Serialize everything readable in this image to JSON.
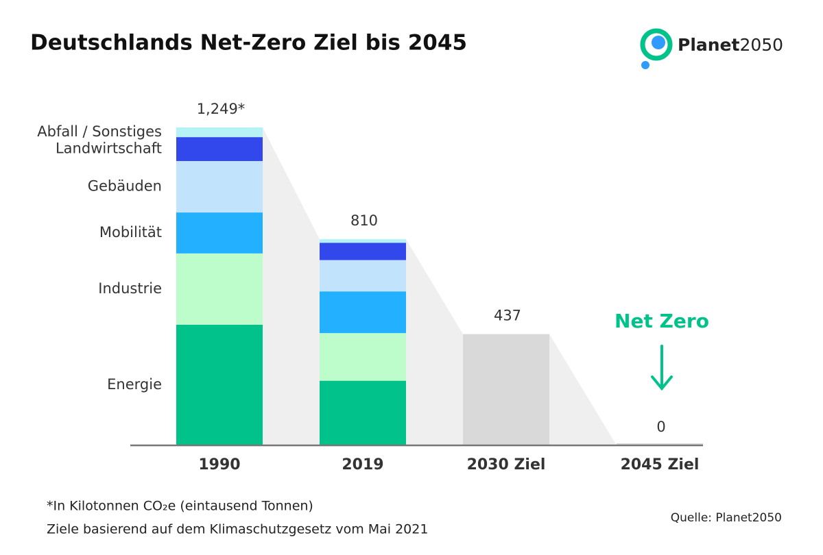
{
  "chart_data": {
    "type": "stacked_bar",
    "title": "Deutschlands Net-Zero Ziel bis 2045",
    "logo": {
      "name": "Planet",
      "suffix": "2050"
    },
    "categories": [
      "1990",
      "2019",
      "2030 Ziel",
      "2045 Ziel"
    ],
    "series": [
      {
        "name": "Energie",
        "color": "#00c28a",
        "values": [
          474,
          254,
          null,
          null
        ]
      },
      {
        "name": "Industrie",
        "color": "#bdfccb",
        "values": [
          280,
          187,
          null,
          null
        ]
      },
      {
        "name": "Mobilität",
        "color": "#22b0ff",
        "values": [
          161,
          164,
          null,
          null
        ]
      },
      {
        "name": "Gebäuden",
        "color": "#c2e3fc",
        "values": [
          202,
          123,
          null,
          null
        ]
      },
      {
        "name": "Landwirtschaft",
        "color": "#3348ec",
        "values": [
          94,
          68,
          null,
          null
        ]
      },
      {
        "name": "Abfall / Sonstiges",
        "color": "#b5f2f5",
        "values": [
          38,
          14,
          null,
          null
        ]
      }
    ],
    "totals": {
      "color": "#d9d9d9",
      "values": [
        1249,
        810,
        437,
        0
      ],
      "value_labels": [
        "1,249*",
        "810",
        "437",
        "0"
      ]
    },
    "annotation": "Net Zero",
    "footnotes": [
      "*In Kilotonnen CO₂e (eintausend Tonnen)",
      "Ziele basierend auf dem Klimaschutzgesetz vom Mai 2021"
    ],
    "source": "Quelle: Planet2050"
  }
}
